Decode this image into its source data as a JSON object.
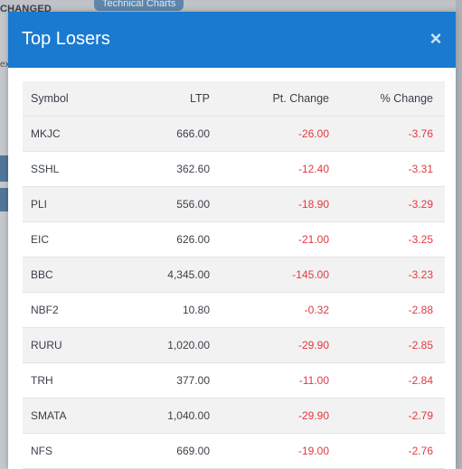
{
  "background": {
    "changed_label": "CHANGED",
    "tab_label": "Technical Charts",
    "ex_label": "ex"
  },
  "modal": {
    "title": "Top Losers",
    "close_glyph": "×",
    "header_color": "#1a7ad0",
    "columns": [
      "Symbol",
      "LTP",
      "Pt. Change",
      "% Change"
    ],
    "rows": [
      {
        "symbol": "MKJC",
        "ltp": "666.00",
        "pt_change": "-26.00",
        "pct_change": "-3.76"
      },
      {
        "symbol": "SSHL",
        "ltp": "362.60",
        "pt_change": "-12.40",
        "pct_change": "-3.31"
      },
      {
        "symbol": "PLI",
        "ltp": "556.00",
        "pt_change": "-18.90",
        "pct_change": "-3.29"
      },
      {
        "symbol": "EIC",
        "ltp": "626.00",
        "pt_change": "-21.00",
        "pct_change": "-3.25"
      },
      {
        "symbol": "BBC",
        "ltp": "4,345.00",
        "pt_change": "-145.00",
        "pct_change": "-3.23"
      },
      {
        "symbol": "NBF2",
        "ltp": "10.80",
        "pt_change": "-0.32",
        "pct_change": "-2.88"
      },
      {
        "symbol": "RURU",
        "ltp": "1,020.00",
        "pt_change": "-29.90",
        "pct_change": "-2.85"
      },
      {
        "symbol": "TRH",
        "ltp": "377.00",
        "pt_change": "-11.00",
        "pct_change": "-2.84"
      },
      {
        "symbol": "SMATA",
        "ltp": "1,040.00",
        "pt_change": "-29.90",
        "pct_change": "-2.79"
      },
      {
        "symbol": "NFS",
        "ltp": "669.00",
        "pt_change": "-19.00",
        "pct_change": "-2.76"
      }
    ]
  }
}
